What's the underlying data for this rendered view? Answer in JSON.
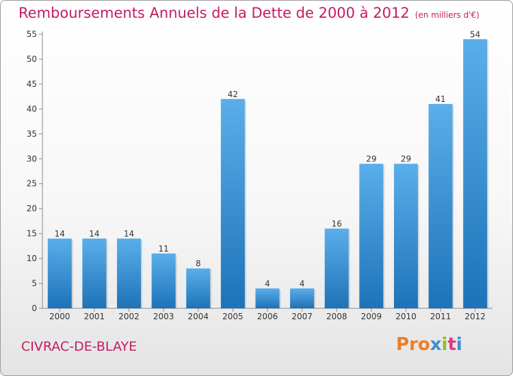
{
  "title": "Remboursements Annuels de la Dette de 2000 à 2012",
  "unit_note": "(en milliers d'€)",
  "commune": "CIVRAC-DE-BLAYE",
  "brand": {
    "text": "Proxiti",
    "letter_colors": [
      "#ef7d21",
      "#ef7d21",
      "#ef7d21",
      "#3a8fd6",
      "#8bbf2a",
      "#e23a7a",
      "#3a8fd6"
    ]
  },
  "colors": {
    "title": "#c41b63",
    "bar_light": "#5aaeea",
    "bar_dark": "#1e73b8"
  },
  "chart_data": {
    "type": "bar",
    "categories": [
      "2000",
      "2001",
      "2002",
      "2003",
      "2004",
      "2005",
      "2006",
      "2007",
      "2008",
      "2009",
      "2010",
      "2011",
      "2012"
    ],
    "values": [
      14,
      14,
      14,
      11,
      8,
      42,
      4,
      4,
      16,
      29,
      29,
      41,
      54
    ],
    "ylim": [
      0,
      55
    ],
    "yticks": [
      0,
      5,
      10,
      15,
      20,
      25,
      30,
      35,
      40,
      45,
      50,
      55
    ],
    "grid": false,
    "data_labels": true
  }
}
